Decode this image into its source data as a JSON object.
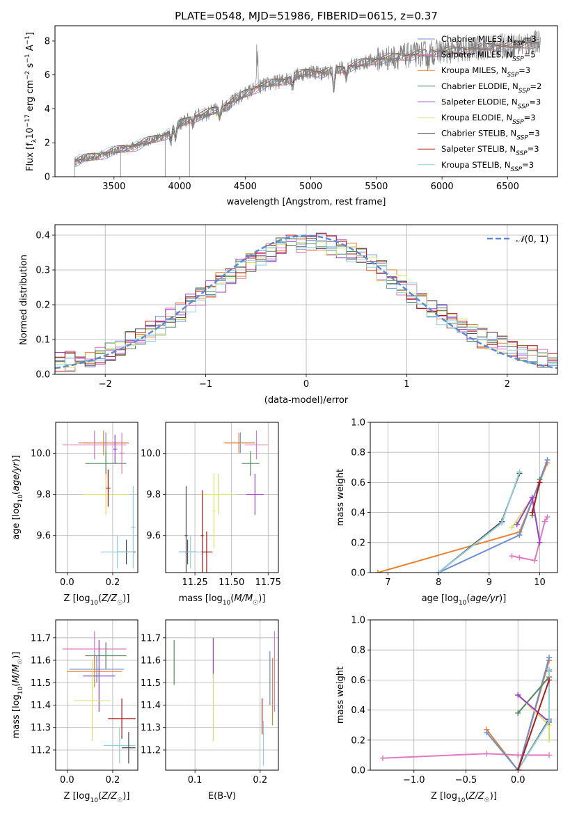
{
  "figure_title": "PLATE=0548, MJD=51986, FIBERID=0615, z=0.37",
  "series_colors": {
    "Chabrier MILES": "#6b8fd6",
    "Salpeter MILES": "#e377c2",
    "Kroupa MILES": "#e8822e",
    "Chabrier ELODIE": "#4f8a5e",
    "Salpeter ELODIE": "#9b3ec9",
    "Kroupa ELODIE": "#d8e06a",
    "Chabrier STELIB": "#4d4d4d",
    "Salpeter STELIB": "#b01a1a",
    "Kroupa STELIB": "#8fd0dd",
    "data": "#808080",
    "gaussian": "#5b8ad6"
  },
  "chart_data": [
    {
      "id": "spectrum",
      "type": "line",
      "xlabel": "wavelength [Angstrom, rest frame]",
      "ylabel": "Flux [f_λ 10^-17 erg cm^-2 s^-1 A^-1]",
      "xlim": [
        3050,
        6880
      ],
      "ylim": [
        0,
        8.9
      ],
      "xticks": [
        3500,
        4000,
        4500,
        5000,
        5500,
        6000,
        6500
      ],
      "yticks": [
        0,
        2,
        4,
        6,
        8
      ],
      "grid": false,
      "legend_position": "upper right",
      "legend": [
        {
          "label": "Chabrier MILES, N_SSP=3",
          "color": "#6b8fd6"
        },
        {
          "label": "Salpeter MILES, N_SSP=5",
          "color": "#e377c2"
        },
        {
          "label": "Kroupa MILES, N_SSP=3",
          "color": "#e8822e"
        },
        {
          "label": "Chabrier ELODIE, N_SSP=2",
          "color": "#4f8a5e"
        },
        {
          "label": "Salpeter ELODIE, N_SSP=3",
          "color": "#9b3ec9"
        },
        {
          "label": "Kroupa ELODIE, N_SSP=3",
          "color": "#d8e06a"
        },
        {
          "label": "Chabrier STELIB, N_SSP=3",
          "color": "#4d4d4d"
        },
        {
          "label": "Salpeter STELIB, N_SSP=3",
          "color": "#b01a1a"
        },
        {
          "label": "Kroupa STELIB, N_SSP=3",
          "color": "#8fd0dd"
        }
      ],
      "data_continuum": {
        "x": [
          3200,
          3300,
          3400,
          3500,
          3600,
          3700,
          3800,
          3900,
          4000,
          4100,
          4200,
          4300,
          4400,
          4500,
          4600,
          4700,
          4800,
          4900,
          5000,
          5100,
          5200,
          5300,
          5400,
          5500,
          5600,
          5700,
          5800,
          5900,
          6000,
          6100,
          6200,
          6300,
          6400,
          6500,
          6600,
          6700,
          6750
        ],
        "y": [
          0.9,
          1.1,
          1.3,
          1.5,
          1.7,
          1.9,
          2.2,
          2.5,
          3.1,
          3.5,
          3.7,
          4.0,
          4.4,
          4.9,
          5.3,
          5.5,
          5.7,
          6.0,
          6.2,
          6.1,
          6.3,
          6.5,
          6.7,
          6.9,
          7.0,
          7.1,
          7.2,
          7.3,
          7.4,
          7.4,
          7.5,
          7.6,
          7.7,
          7.7,
          7.8,
          7.9,
          7.9
        ]
      },
      "data_noise": 0.45
    },
    {
      "id": "residuals",
      "type": "histogram",
      "xlabel": "(data-model)/error",
      "ylabel": "Normed distribution",
      "xlim": [
        -2.5,
        2.5
      ],
      "ylim": [
        0,
        0.43
      ],
      "xticks": [
        -2,
        -1,
        0,
        1,
        2
      ],
      "yticks": [
        0.0,
        0.1,
        0.2,
        0.3,
        0.4
      ],
      "grid": true,
      "legend_position": "upper right",
      "legend_label": "N(0,1)",
      "bin_width": 0.1,
      "bins_start": -2.5,
      "envelope": [
        0.035,
        0.038,
        0.044,
        0.05,
        0.058,
        0.068,
        0.08,
        0.093,
        0.108,
        0.124,
        0.141,
        0.16,
        0.18,
        0.201,
        0.222,
        0.243,
        0.264,
        0.285,
        0.305,
        0.323,
        0.339,
        0.353,
        0.364,
        0.372,
        0.377,
        0.378,
        0.376,
        0.37,
        0.361,
        0.349,
        0.334,
        0.317,
        0.298,
        0.277,
        0.256,
        0.234,
        0.213,
        0.192,
        0.172,
        0.153,
        0.136,
        0.12,
        0.105,
        0.092,
        0.081,
        0.071,
        0.063,
        0.056,
        0.05,
        0.045
      ],
      "series_amplitude": 0.03
    },
    {
      "id": "age-vs-Z",
      "type": "scatter",
      "xlabel": "Z [log10(Z/Z☉)]",
      "ylabel": "age  [log10(age/yr)]",
      "xlim": [
        -0.05,
        0.31
      ],
      "ylim": [
        9.42,
        10.15
      ],
      "xticks": [
        0.0,
        0.2
      ],
      "yticks": [
        9.6,
        9.8,
        10.0
      ],
      "grid": true,
      "points": [
        {
          "s": "Chabrier MILES",
          "x": 0.17,
          "xe": 0.1,
          "y": 10.05,
          "ye": 0.05
        },
        {
          "s": "Salpeter MILES",
          "x": 0.12,
          "xe": 0.14,
          "y": 10.04,
          "ye": 0.07
        },
        {
          "s": "Kroupa MILES",
          "x": 0.16,
          "xe": 0.11,
          "y": 10.05,
          "ye": 0.06
        },
        {
          "s": "Chabrier ELODIE",
          "x": 0.17,
          "xe": 0.09,
          "y": 9.95,
          "ye": 0.06
        },
        {
          "s": "Salpeter ELODIE",
          "x": 0.21,
          "xe": 0.01,
          "y": 10.02,
          "ye": 0.07
        },
        {
          "s": "Kroupa ELODIE",
          "x": 0.17,
          "xe": 0.1,
          "y": 9.8,
          "ye": 0.1
        },
        {
          "s": "Chabrier STELIB",
          "x": 0.26,
          "xe": 0.04,
          "y": 9.52,
          "ye": 0.06
        },
        {
          "s": "Salpeter STELIB",
          "x": 0.18,
          "xe": 0.01,
          "y": 9.83,
          "ye": 0.09
        },
        {
          "s": "Kroupa STELIB",
          "x": 0.22,
          "xe": 0.07,
          "y": 9.52,
          "ye": 0.08
        },
        {
          "s": "Salpeter MILES",
          "x": 0.24,
          "xe": 0.01,
          "y": 10.0,
          "ye": 0.1
        },
        {
          "s": "Kroupa STELIB",
          "x": 0.29,
          "xe": 0.01,
          "y": 9.64,
          "ye": 0.2
        }
      ]
    },
    {
      "id": "age-vs-mass",
      "type": "scatter",
      "xlabel": "mass [log10(M/M☉)]",
      "ylabel": "",
      "xlim": [
        11.05,
        11.82
      ],
      "ylim": [
        9.42,
        10.15
      ],
      "xticks": [
        11.25,
        11.5,
        11.75
      ],
      "yticks": [
        9.6,
        9.8,
        10.0
      ],
      "grid": true,
      "points": [
        {
          "s": "Chabrier MILES",
          "x": 11.56,
          "xe": 0.1,
          "y": 10.05,
          "ye": 0.05
        },
        {
          "s": "Salpeter MILES",
          "x": 11.67,
          "xe": 0.08,
          "y": 10.04,
          "ye": 0.07
        },
        {
          "s": "Kroupa MILES",
          "x": 11.55,
          "xe": 0.1,
          "y": 10.05,
          "ye": 0.05
        },
        {
          "s": "Chabrier ELODIE",
          "x": 11.63,
          "xe": 0.06,
          "y": 9.95,
          "ye": 0.06
        },
        {
          "s": "Salpeter ELODIE",
          "x": 11.66,
          "xe": 0.06,
          "y": 9.8,
          "ye": 0.1
        },
        {
          "s": "Kroupa ELODIE",
          "x": 11.41,
          "xe": 0.12,
          "y": 9.8,
          "ye": 0.1
        },
        {
          "s": "Chabrier STELIB",
          "x": 11.2,
          "xe": 0.06,
          "y": 9.52,
          "ye": 0.06
        },
        {
          "s": "Salpeter STELIB",
          "x": 11.33,
          "xe": 0.04,
          "y": 9.52,
          "ye": 0.1
        },
        {
          "s": "Kroupa STELIB",
          "x": 11.22,
          "xe": 0.08,
          "y": 9.52,
          "ye": 0.08
        },
        {
          "s": "Chabrier STELIB",
          "x": 11.19,
          "xe": 0.01,
          "y": 9.6,
          "ye": 0.24
        },
        {
          "s": "Salpeter STELIB",
          "x": 11.3,
          "xe": 0.01,
          "y": 9.6,
          "ye": 0.22
        },
        {
          "s": "Kroupa ELODIE",
          "x": 11.38,
          "xe": 0.01,
          "y": 9.72,
          "ye": 0.18
        }
      ]
    },
    {
      "id": "mass-weight-vs-age",
      "type": "line",
      "xlabel": "age  [log10(age/yr)]",
      "ylabel": "mass weight",
      "xlim": [
        6.65,
        10.35
      ],
      "ylim": [
        0,
        1.0
      ],
      "xticks": [
        7,
        8,
        9,
        10
      ],
      "yticks": [
        0.0,
        0.2,
        0.4,
        0.6,
        0.8,
        1.0
      ],
      "grid": true,
      "series": [
        {
          "name": "Kroupa MILES",
          "x": [
            6.8,
            9.6,
            10.15
          ],
          "y": [
            0.0,
            0.27,
            0.73
          ]
        },
        {
          "name": "Chabrier MILES",
          "x": [
            8.0,
            9.6,
            10.15
          ],
          "y": [
            0.0,
            0.25,
            0.75
          ]
        },
        {
          "name": "Salpeter MILES",
          "x": [
            9.45,
            9.6,
            9.9,
            10.1,
            10.15
          ],
          "y": [
            0.11,
            0.1,
            0.08,
            0.34,
            0.37
          ]
        },
        {
          "name": "Chabrier ELODIE",
          "x": [
            9.85,
            10.0
          ],
          "y": [
            0.38,
            0.62
          ]
        },
        {
          "name": "Kroupa ELODIE",
          "x": [
            9.45,
            9.85,
            10.0
          ],
          "y": [
            0.3,
            0.5,
            0.2
          ]
        },
        {
          "name": "Salpeter ELODIE",
          "x": [
            9.55,
            9.85,
            10.0
          ],
          "y": [
            0.32,
            0.5,
            0.2
          ]
        },
        {
          "name": "Chabrier STELIB",
          "x": [
            8.0,
            9.25,
            9.6
          ],
          "y": [
            0.0,
            0.34,
            0.66
          ]
        },
        {
          "name": "Kroupa STELIB",
          "x": [
            8.0,
            9.25,
            9.6
          ],
          "y": [
            0.0,
            0.33,
            0.67
          ]
        },
        {
          "name": "Salpeter STELIB",
          "x": [
            9.85,
            10.0
          ],
          "y": [
            0.4,
            0.6
          ]
        }
      ]
    },
    {
      "id": "mass-vs-Z",
      "type": "scatter",
      "xlabel": "Z [log10(Z/Z☉)]",
      "ylabel": "mass [log10(M/M☉)]",
      "xlim": [
        -0.05,
        0.31
      ],
      "ylim": [
        11.11,
        11.78
      ],
      "xticks": [
        0.0,
        0.2
      ],
      "yticks": [
        11.2,
        11.3,
        11.4,
        11.5,
        11.6,
        11.7
      ],
      "grid": true,
      "points": [
        {
          "s": "Salpeter MILES",
          "x": 0.12,
          "xe": 0.14,
          "y": 11.65,
          "ye": 0.08
        },
        {
          "s": "Chabrier ELODIE",
          "x": 0.17,
          "xe": 0.09,
          "y": 11.62,
          "ye": 0.06
        },
        {
          "s": "Chabrier MILES",
          "x": 0.13,
          "xe": 0.12,
          "y": 11.56,
          "ye": 0.06
        },
        {
          "s": "Kroupa MILES",
          "x": 0.12,
          "xe": 0.12,
          "y": 11.55,
          "ye": 0.07
        },
        {
          "s": "Salpeter ELODIE",
          "x": 0.14,
          "xe": 0.07,
          "y": 11.53,
          "ye": 0.16
        },
        {
          "s": "Kroupa ELODIE",
          "x": 0.11,
          "xe": 0.08,
          "y": 11.42,
          "ye": 0.18
        },
        {
          "s": "Salpeter STELIB",
          "x": 0.24,
          "xe": 0.06,
          "y": 11.34,
          "ye": 0.09
        },
        {
          "s": "Kroupa STELIB",
          "x": 0.23,
          "xe": 0.07,
          "y": 11.22,
          "ye": 0.08
        },
        {
          "s": "Chabrier STELIB",
          "x": 0.27,
          "xe": 0.03,
          "y": 11.21,
          "ye": 0.07
        }
      ]
    },
    {
      "id": "mass-vs-EBV",
      "type": "scatter",
      "xlabel": "E(B-V)",
      "ylabel": "",
      "xlim": [
        0.055,
        0.228
      ],
      "ylim": [
        11.11,
        11.78
      ],
      "xticks": [
        0.1,
        0.2
      ],
      "yticks": [
        11.2,
        11.3,
        11.4,
        11.5,
        11.6,
        11.7
      ],
      "grid": true,
      "points": [
        {
          "s": "Chabrier ELODIE",
          "x": 0.068,
          "xe": 0,
          "y": 11.59,
          "ye": 0.1
        },
        {
          "s": "Salpeter ELODIE",
          "x": 0.128,
          "xe": 0,
          "y": 11.61,
          "ye": 0.09
        },
        {
          "s": "Kroupa ELODIE",
          "x": 0.128,
          "xe": 0,
          "y": 11.39,
          "ye": 0.15
        },
        {
          "s": "Salpeter STELIB",
          "x": 0.203,
          "xe": 0,
          "y": 11.35,
          "ye": 0.08
        },
        {
          "s": "Kroupa STELIB",
          "x": 0.205,
          "xe": 0,
          "y": 11.23,
          "ye": 0.1
        },
        {
          "s": "Chabrier MILES",
          "x": 0.215,
          "xe": 0,
          "y": 11.52,
          "ye": 0.12
        },
        {
          "s": "Kroupa MILES",
          "x": 0.219,
          "xe": 0,
          "y": 11.46,
          "ye": 0.15
        },
        {
          "s": "Salpeter MILES",
          "x": 0.222,
          "xe": 0,
          "y": 11.55,
          "ye": 0.18
        }
      ]
    },
    {
      "id": "mass-weight-vs-Z",
      "type": "line",
      "xlabel": "Z [log10(Z/Z☉)]",
      "ylabel": "mass weight",
      "xlim": [
        -1.42,
        0.38
      ],
      "ylim": [
        0,
        1.0
      ],
      "xticks": [
        -1.0,
        -0.5,
        0.0
      ],
      "yticks": [
        0.0,
        0.2,
        0.4,
        0.6,
        0.8,
        1.0
      ],
      "grid": true,
      "series": [
        {
          "name": "Salpeter MILES",
          "x": [
            -1.3,
            -0.3,
            0.0,
            0.3
          ],
          "y": [
            0.08,
            0.11,
            0.1,
            0.1
          ]
        },
        {
          "name": "Kroupa MILES",
          "x": [
            -0.3,
            0.0,
            0.3
          ],
          "y": [
            0.27,
            0.0,
            0.73
          ]
        },
        {
          "name": "Chabrier MILES",
          "x": [
            -0.3,
            0.0,
            0.3
          ],
          "y": [
            0.25,
            0.0,
            0.75
          ]
        },
        {
          "name": "Chabrier ELODIE",
          "x": [
            0.0,
            0.3
          ],
          "y": [
            0.38,
            0.62
          ]
        },
        {
          "name": "Kroupa ELODIE",
          "x": [
            0.0,
            0.3,
            0.3
          ],
          "y": [
            0.5,
            0.3,
            0.2
          ]
        },
        {
          "name": "Salpeter ELODIE",
          "x": [
            0.0,
            0.3
          ],
          "y": [
            0.5,
            0.32
          ]
        },
        {
          "name": "Chabrier STELIB",
          "x": [
            0.0,
            0.3,
            0.3
          ],
          "y": [
            0.0,
            0.34,
            0.66
          ]
        },
        {
          "name": "Kroupa STELIB",
          "x": [
            0.0,
            0.3,
            0.3
          ],
          "y": [
            0.0,
            0.33,
            0.67
          ]
        },
        {
          "name": "Salpeter STELIB",
          "x": [
            0.0,
            0.3
          ],
          "y": [
            0.0,
            0.6
          ]
        }
      ]
    }
  ]
}
